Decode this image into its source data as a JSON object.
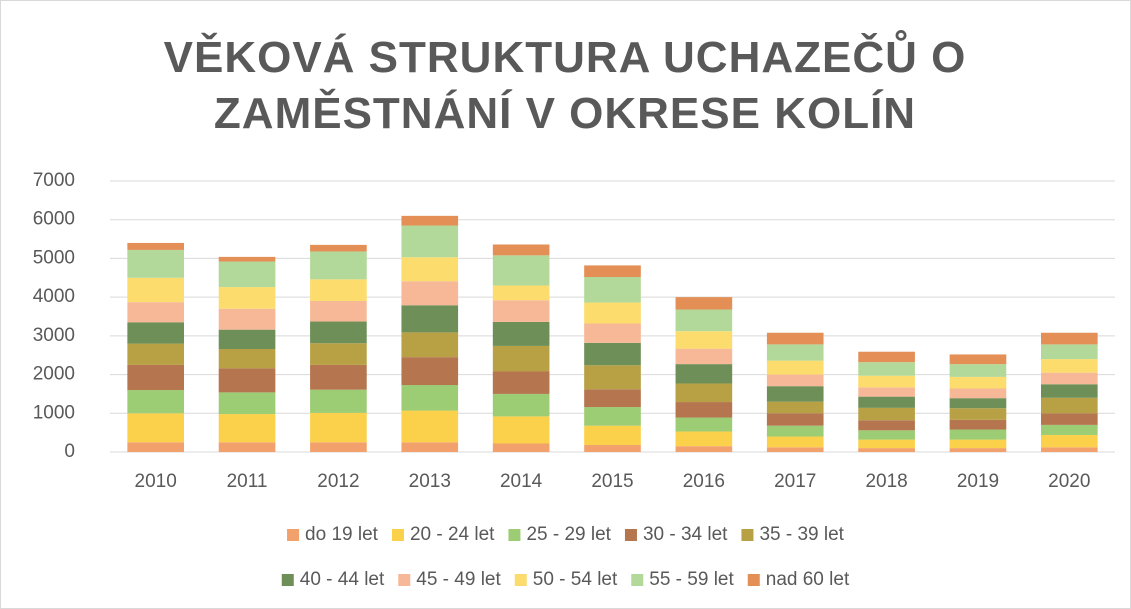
{
  "chart_data": {
    "type": "stacked_bar",
    "title": "VĚKOVÁ STRUKTURA UCHAZEČŮ O ZAMĚSTNÁNÍ V OKRESE KOLÍN",
    "categories": [
      "2010",
      "2011",
      "2012",
      "2013",
      "2014",
      "2015",
      "2016",
      "2017",
      "2018",
      "2019",
      "2020"
    ],
    "series": [
      {
        "name": "do 19 let",
        "color": "#f2a06c",
        "values": [
          250,
          250,
          250,
          250,
          220,
          180,
          150,
          120,
          100,
          100,
          120
        ]
      },
      {
        "name": "20 - 24 let",
        "color": "#fbd14b",
        "values": [
          750,
          730,
          760,
          820,
          700,
          500,
          380,
          280,
          220,
          220,
          320
        ]
      },
      {
        "name": "25 - 29 let",
        "color": "#9ccc74",
        "values": [
          600,
          560,
          600,
          660,
          580,
          480,
          360,
          280,
          240,
          260,
          260
        ]
      },
      {
        "name": "30 - 34 let",
        "color": "#b5754f",
        "values": [
          650,
          620,
          640,
          720,
          580,
          460,
          400,
          320,
          260,
          250,
          300
        ]
      },
      {
        "name": "35 - 39 let",
        "color": "#b8a044",
        "values": [
          550,
          500,
          560,
          640,
          660,
          620,
          480,
          300,
          320,
          300,
          400
        ]
      },
      {
        "name": "40 - 44 let",
        "color": "#6e8f58",
        "values": [
          550,
          500,
          560,
          700,
          620,
          580,
          500,
          400,
          290,
          260,
          350
        ]
      },
      {
        "name": "45 - 49 let",
        "color": "#f6b896",
        "values": [
          520,
          540,
          530,
          620,
          560,
          500,
          400,
          300,
          240,
          250,
          300
        ]
      },
      {
        "name": "50 - 54 let",
        "color": "#fcdc6c",
        "values": [
          630,
          560,
          560,
          620,
          380,
          540,
          450,
          360,
          300,
          300,
          350
        ]
      },
      {
        "name": "55 - 59 let",
        "color": "#b3d99a",
        "values": [
          720,
          660,
          720,
          820,
          780,
          660,
          560,
          420,
          350,
          330,
          380
        ]
      },
      {
        "name": "nad 60 let",
        "color": "#e48f56",
        "values": [
          180,
          120,
          170,
          250,
          280,
          300,
          320,
          300,
          270,
          250,
          300
        ]
      }
    ],
    "ylim": [
      0,
      7000
    ],
    "yticks": [
      0,
      1000,
      2000,
      3000,
      4000,
      5000,
      6000,
      7000
    ],
    "grid": true
  }
}
